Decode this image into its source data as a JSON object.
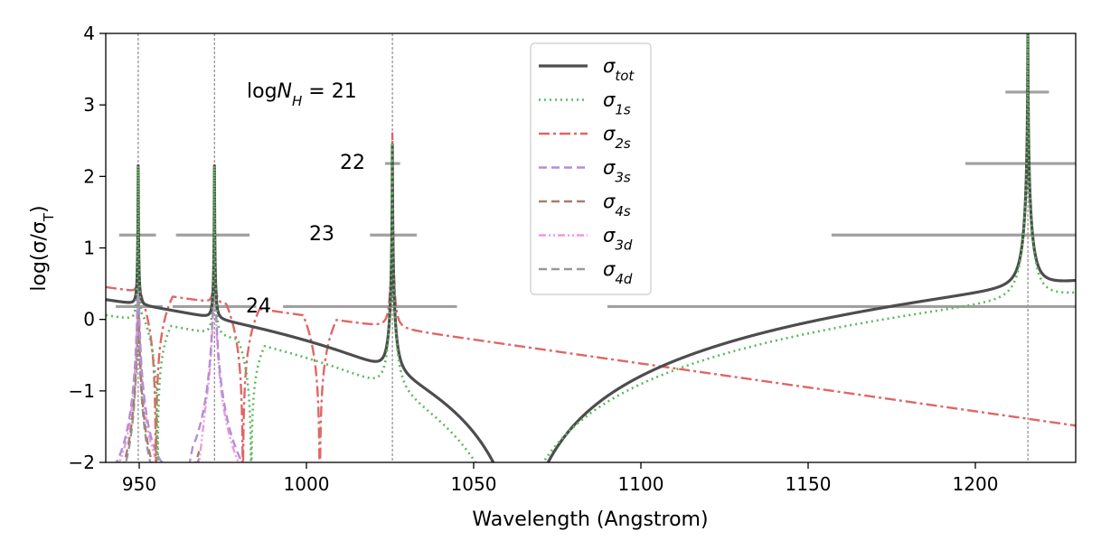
{
  "chart_data": {
    "type": "line",
    "title": "",
    "xlabel": "Wavelength (Angstrom)",
    "ylabel": "log(σ/σT)",
    "xlim": [
      940,
      1230
    ],
    "ylim": [
      -2,
      4
    ],
    "xticks": [
      950,
      1000,
      1050,
      1100,
      1150,
      1200
    ],
    "yticks": [
      -2,
      -1,
      0,
      1,
      2,
      3,
      4
    ],
    "xtick_labels": [
      "950",
      "1000",
      "1050",
      "1100",
      "1150",
      "1200"
    ],
    "ytick_labels": [
      "−2",
      "−1",
      "0",
      "1",
      "2",
      "3",
      "4"
    ],
    "resonances": [
      949.7,
      972.5,
      1025.7,
      1215.7
    ],
    "legend_position": "top-center",
    "series": [
      {
        "name": "σtot",
        "sym": "σ",
        "sub": "tot",
        "color": "#4d4d4d",
        "dash": "",
        "width": 3.2
      },
      {
        "name": "σ1s",
        "sym": "σ",
        "sub": "1s",
        "color": "#5cb85c",
        "dash": "2,4",
        "width": 2.6
      },
      {
        "name": "σ2s",
        "sym": "σ",
        "sub": "2s",
        "color": "#e06666",
        "dash": "12,4,3,4",
        "width": 2.4
      },
      {
        "name": "σ3s",
        "sym": "σ",
        "sub": "3s",
        "color": "#b48ed6",
        "dash": "9,5",
        "width": 2.4
      },
      {
        "name": "σ4s",
        "sym": "σ",
        "sub": "4s",
        "color": "#a67f6e",
        "dash": "9,5",
        "width": 2.4
      },
      {
        "name": "σ3d",
        "sym": "σ",
        "sub": "3d",
        "color": "#ee99dd",
        "dash": "8,3,2,3,2,3",
        "width": 2.4
      },
      {
        "name": "σ4d",
        "sym": "σ",
        "sub": "4d",
        "color": "#999999",
        "dash": "9,5",
        "width": 2.4
      }
    ],
    "thresholds": [
      {
        "label": "logN",
        "label_sub": "H",
        "label_suffix": " = 21",
        "y": 3.18,
        "segments": [
          [
            1209,
            1222
          ]
        ]
      },
      {
        "label": "22",
        "y": 2.18,
        "segments": [
          [
            1023.5,
            1028
          ],
          [
            1197,
            1230
          ]
        ]
      },
      {
        "label": "23",
        "y": 1.18,
        "segments": [
          [
            944,
            955
          ],
          [
            961,
            983
          ],
          [
            1019,
            1033
          ],
          [
            1157,
            1230
          ]
        ]
      },
      {
        "label": "24",
        "y": 0.18,
        "segments": [
          [
            943,
            957
          ],
          [
            960,
            985
          ],
          [
            993,
            1045
          ],
          [
            1090,
            1230
          ]
        ]
      }
    ]
  }
}
